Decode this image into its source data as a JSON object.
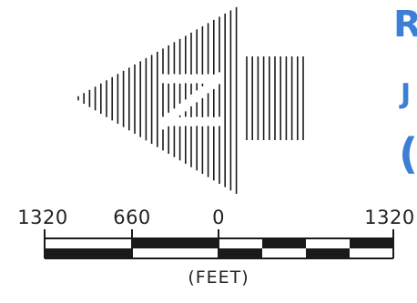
{
  "scale": {
    "labels": [
      "1320",
      "660",
      "0",
      "1320"
    ],
    "units": "(FEET)",
    "bar_color": "#1a1a1a"
  },
  "north_arrow": {
    "icon": "north-arrow-icon",
    "letter": "N",
    "color": "#1a1a1a"
  },
  "edge_text": {
    "chars": [
      "R",
      "J",
      "("
    ],
    "color": "#3d7fd6"
  }
}
